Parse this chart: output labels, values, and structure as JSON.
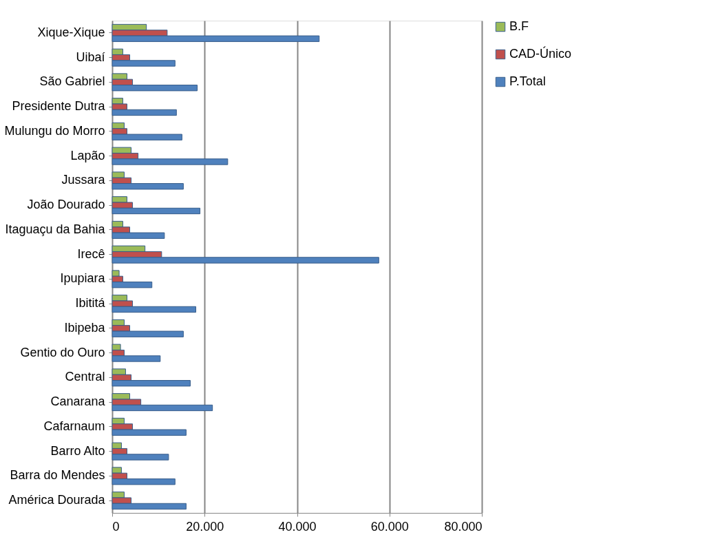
{
  "chart_data": {
    "type": "bar",
    "orientation": "horizontal",
    "categories": [
      "Xique-Xique",
      "Uibaí",
      "São Gabriel",
      "Presidente Dutra",
      "Mulungu do Morro",
      "Lapão",
      "Jussara",
      "João Dourado",
      "Itaguaçu da Bahia",
      "Irecê",
      "Ipupiara",
      "Ibititá",
      "Ibipeba",
      "Gentio do Ouro",
      "Central",
      "Canarana",
      "Cafarnaum",
      "Barro Alto",
      "Barra do Mendes",
      "América Dourada"
    ],
    "series": [
      {
        "name": "B.F",
        "color": "#9bbb59",
        "values": [
          7400,
          2300,
          3200,
          2300,
          2600,
          4100,
          2600,
          3200,
          2300,
          7100,
          1500,
          3200,
          2600,
          1800,
          2900,
          3800,
          2600,
          2000,
          2000,
          2600
        ]
      },
      {
        "name": "CAD-Único",
        "color": "#c0504d",
        "values": [
          11900,
          3800,
          4400,
          3200,
          3200,
          5600,
          4100,
          4400,
          3800,
          10700,
          2300,
          4400,
          3800,
          2600,
          4100,
          6200,
          4400,
          3200,
          3200,
          4100
        ]
      },
      {
        "name": "P.Total",
        "color": "#4f81bd",
        "values": [
          44800,
          13600,
          18400,
          13900,
          15100,
          25000,
          15400,
          19000,
          11300,
          57700,
          8600,
          18100,
          15400,
          10400,
          16900,
          21700,
          16000,
          12200,
          13600,
          16000
        ]
      }
    ],
    "xlim": [
      0,
      80000
    ],
    "xticks": [
      0,
      {
        "value": 20000,
        "label": "20.000"
      },
      {
        "value": 40000,
        "label": "40.000"
      },
      {
        "value": 60000,
        "label": "60.000"
      },
      {
        "value": 80000,
        "label": "80.000"
      }
    ],
    "grid": "x",
    "legend": "right"
  }
}
